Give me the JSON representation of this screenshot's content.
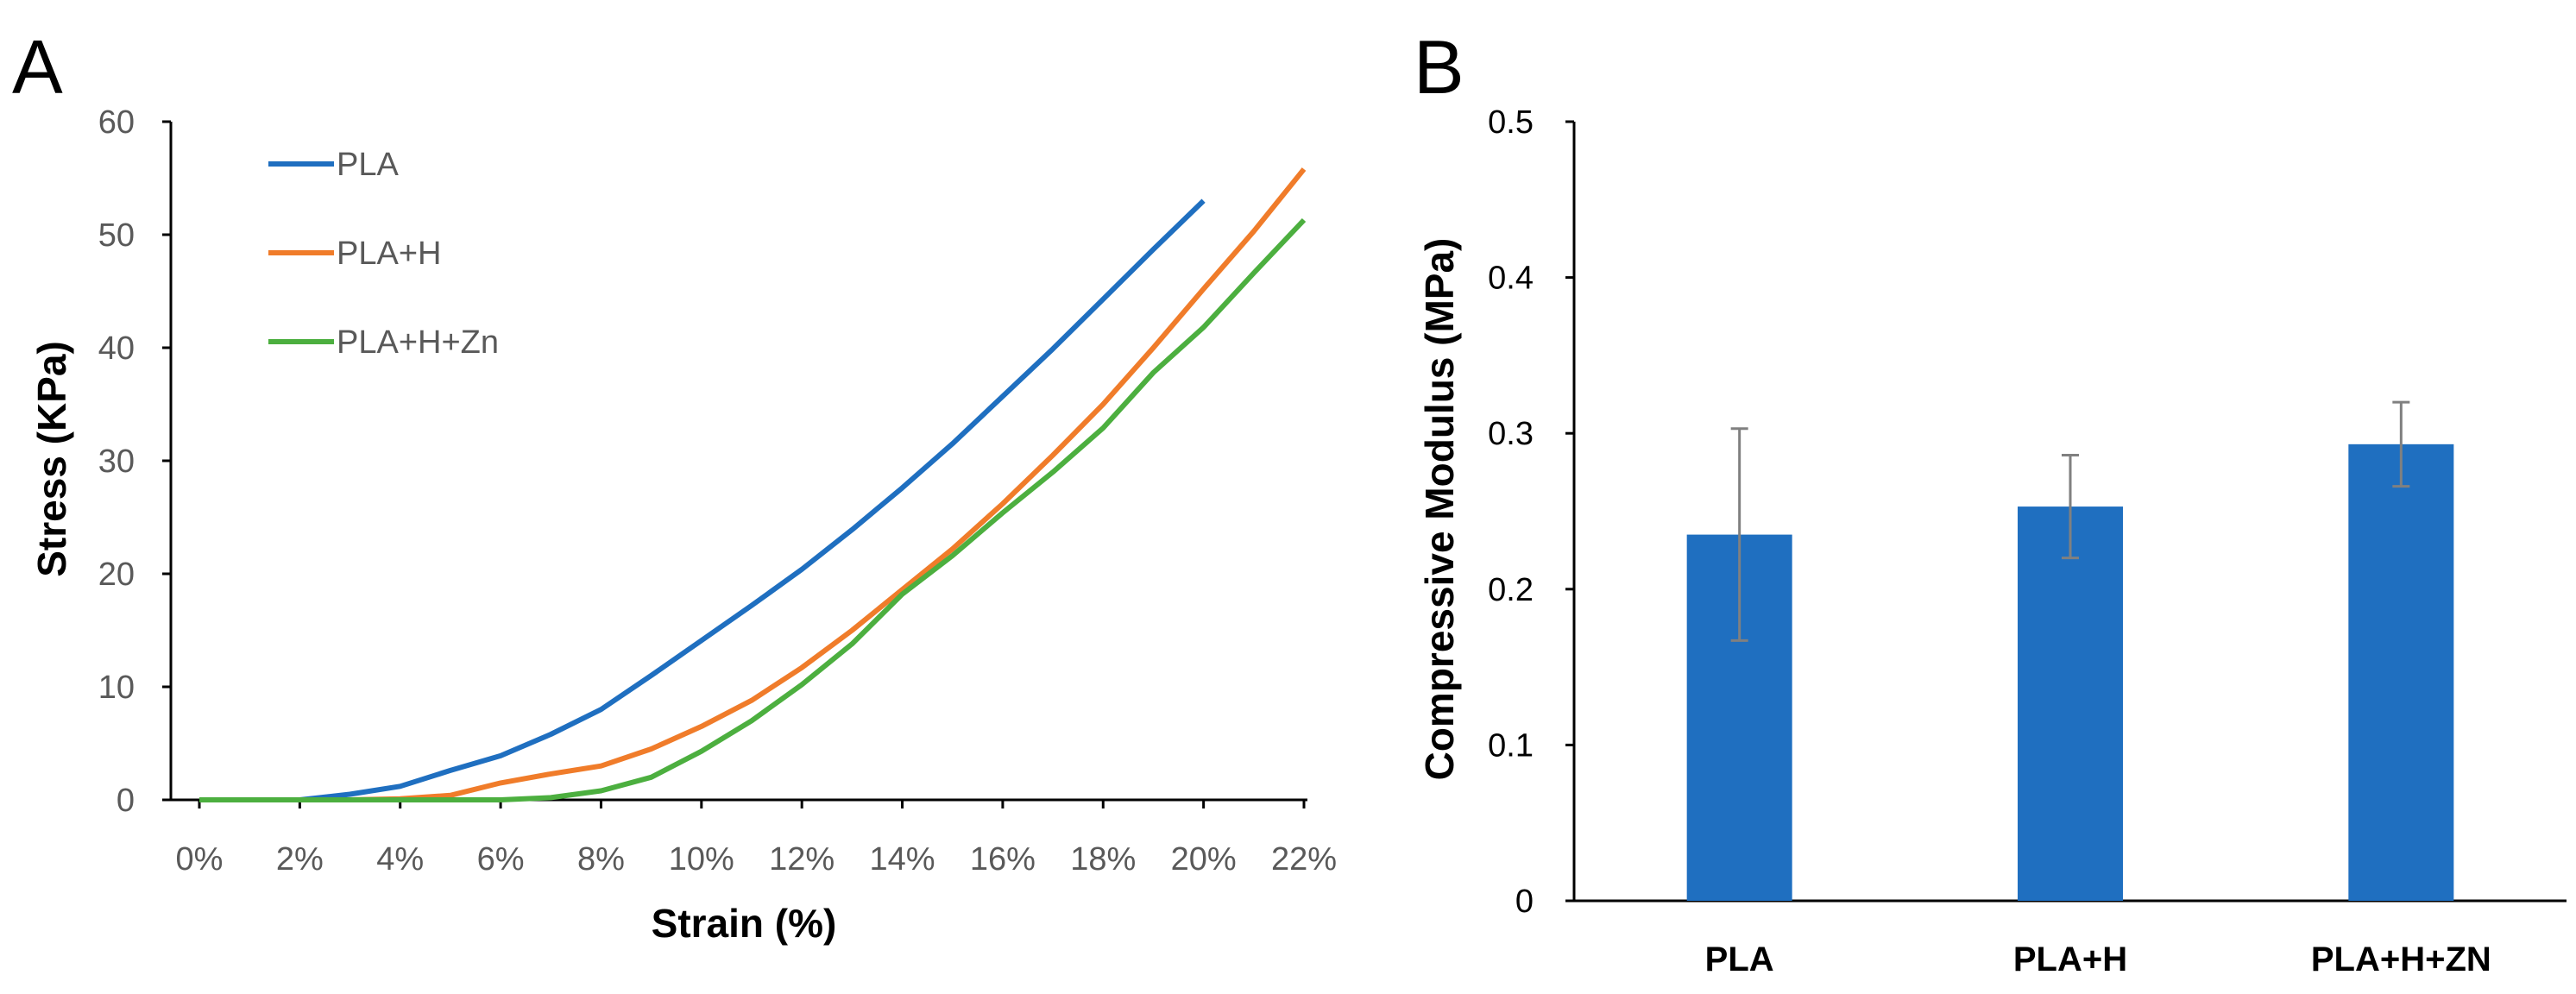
{
  "chart_data": [
    {
      "panel": "A",
      "type": "line",
      "xlabel": "Strain (%)",
      "ylabel": "Stress (KPa)",
      "xlim": [
        0,
        22
      ],
      "ylim": [
        0,
        60
      ],
      "xticks": [
        "0%",
        "2%",
        "4%",
        "6%",
        "8%",
        "10%",
        "12%",
        "14%",
        "16%",
        "18%",
        "20%",
        "22%"
      ],
      "yticks": [
        "0",
        "10",
        "20",
        "30",
        "40",
        "50",
        "60"
      ],
      "legend_position": "top-left",
      "series": [
        {
          "name": "PLA",
          "color": "#1F6FC0",
          "x": [
            0,
            1,
            2,
            3,
            4,
            5,
            6,
            7,
            8,
            9,
            10,
            11,
            12,
            13,
            14,
            15,
            16,
            17,
            18,
            19,
            20
          ],
          "y": [
            0,
            0,
            0,
            0.5,
            1.2,
            2.6,
            3.9,
            5.8,
            8.0,
            11.0,
            14.1,
            17.2,
            20.4,
            23.9,
            27.6,
            31.5,
            35.7,
            39.9,
            44.3,
            48.7,
            53.0
          ]
        },
        {
          "name": "PLA+H",
          "color": "#F07C2A",
          "x": [
            0,
            1,
            2,
            3,
            4,
            5,
            6,
            7,
            8,
            9,
            10,
            11,
            12,
            13,
            14,
            15,
            16,
            17,
            18,
            19,
            20,
            21,
            22
          ],
          "y": [
            0,
            0,
            0,
            0,
            0.1,
            0.4,
            1.5,
            2.3,
            3.0,
            4.5,
            6.5,
            8.8,
            11.7,
            15.0,
            18.6,
            22.2,
            26.2,
            30.5,
            35.0,
            40.0,
            45.2,
            50.3,
            55.8
          ]
        },
        {
          "name": "PLA+H+Zn",
          "color": "#4CAF3F",
          "x": [
            0,
            1,
            2,
            3,
            4,
            5,
            6,
            7,
            8,
            9,
            10,
            11,
            12,
            13,
            14,
            15,
            16,
            17,
            18,
            19,
            20,
            21,
            22
          ],
          "y": [
            0,
            0,
            0,
            0,
            0,
            0,
            0,
            0.2,
            0.8,
            2.0,
            4.3,
            7.0,
            10.2,
            13.8,
            18.2,
            21.6,
            25.4,
            29.0,
            32.9,
            37.8,
            41.8,
            46.6,
            51.3
          ]
        }
      ]
    },
    {
      "panel": "B",
      "type": "bar",
      "categories": [
        "PLA",
        "PLA+H",
        "PLA+H+ZN"
      ],
      "values": [
        0.235,
        0.253,
        0.293
      ],
      "errors": [
        0.068,
        0.033,
        0.027
      ],
      "ylabel": "Compressive Modulus (MPa)",
      "ylim": [
        0,
        0.5
      ],
      "yticks": [
        "0",
        "0.1",
        "0.2",
        "0.3",
        "0.4",
        "0.5"
      ],
      "bar_color": "#1F6FC0",
      "error_color": "#808080"
    }
  ]
}
